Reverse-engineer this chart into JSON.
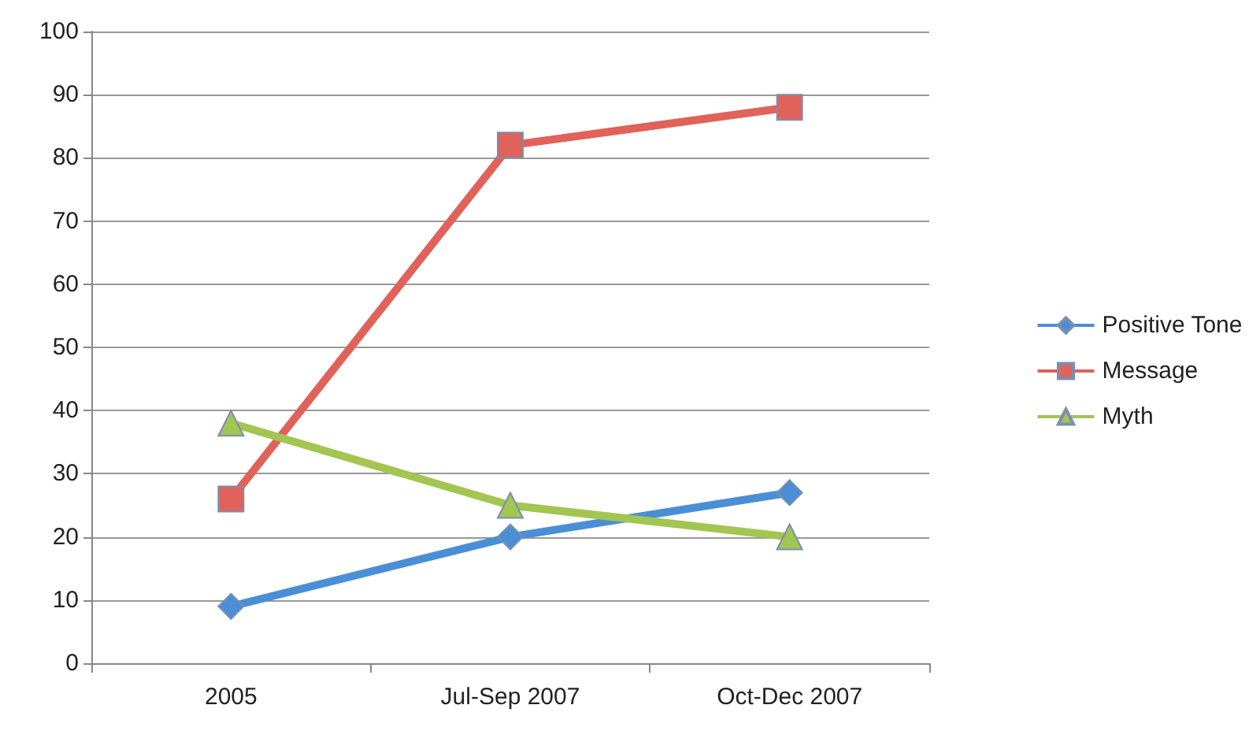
{
  "chart_data": {
    "type": "line",
    "categories": [
      "2005",
      "Jul-Sep 2007",
      "Oct-Dec 2007"
    ],
    "series": [
      {
        "name": "Positive Tone",
        "color": "#4a8fd6",
        "marker": "diamond",
        "values": [
          9,
          20,
          27
        ]
      },
      {
        "name": "Message",
        "color": "#e0625a",
        "marker": "square",
        "values": [
          26,
          82,
          88
        ]
      },
      {
        "name": "Myth",
        "color": "#a3c552",
        "marker": "triangle",
        "values": [
          38,
          25,
          20
        ]
      }
    ],
    "ylim": [
      0,
      100
    ],
    "yticks": [
      0,
      10,
      20,
      30,
      40,
      50,
      60,
      70,
      80,
      90,
      100
    ],
    "grid": "y",
    "legend": "right"
  }
}
